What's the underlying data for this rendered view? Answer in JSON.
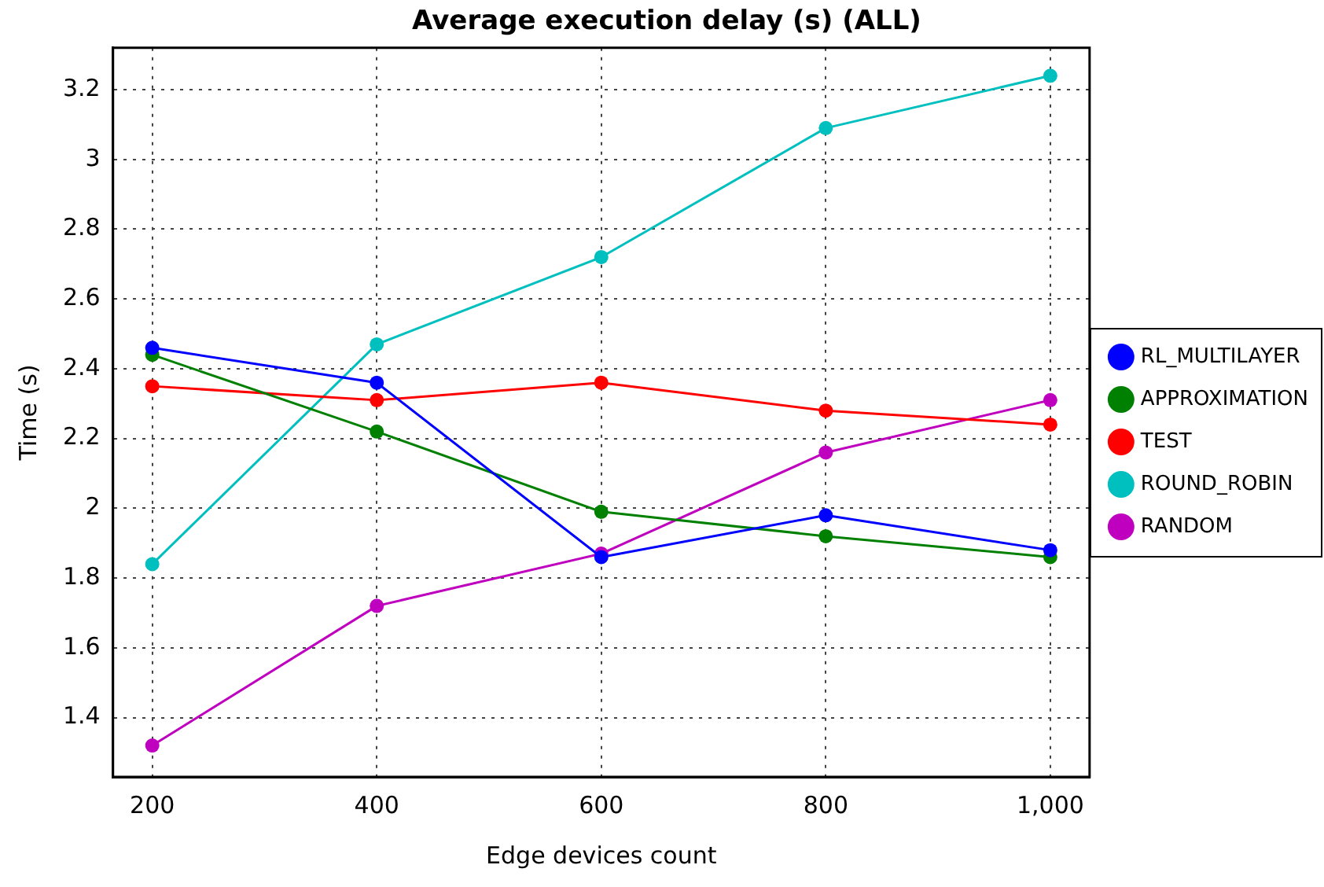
{
  "chart_data": {
    "type": "line",
    "title": "Average execution delay (s) (ALL)",
    "xlabel": "Edge devices count",
    "ylabel": "Time (s)",
    "x": [
      200,
      400,
      600,
      800,
      1000
    ],
    "series": [
      {
        "name": "RL_MULTILAYER",
        "color": "#0000ff",
        "values": [
          2.46,
          2.36,
          1.86,
          1.98,
          1.88
        ]
      },
      {
        "name": "APPROXIMATION",
        "color": "#008000",
        "values": [
          2.44,
          2.22,
          1.99,
          1.92,
          1.86
        ]
      },
      {
        "name": "TEST",
        "color": "#ff0000",
        "values": [
          2.35,
          2.31,
          2.36,
          2.28,
          2.24
        ]
      },
      {
        "name": "ROUND_ROBIN",
        "color": "#00bfbf",
        "values": [
          1.84,
          2.47,
          2.72,
          3.09,
          3.24
        ]
      },
      {
        "name": "RANDOM",
        "color": "#bf00bf",
        "values": [
          1.32,
          1.72,
          1.87,
          2.16,
          2.31
        ]
      }
    ],
    "xlim": [
      165,
      1035
    ],
    "xticks": [
      200,
      400,
      600,
      800,
      {
        "value": 1000,
        "label": "1,000"
      }
    ],
    "ylim": [
      1.23,
      3.32
    ],
    "yticks": [
      1.4,
      1.6,
      1.8,
      2,
      2.2,
      2.4,
      2.6,
      2.8,
      3,
      3.2
    ],
    "grid": true,
    "legend": "right",
    "marker": "circle",
    "line_style": "solid"
  }
}
